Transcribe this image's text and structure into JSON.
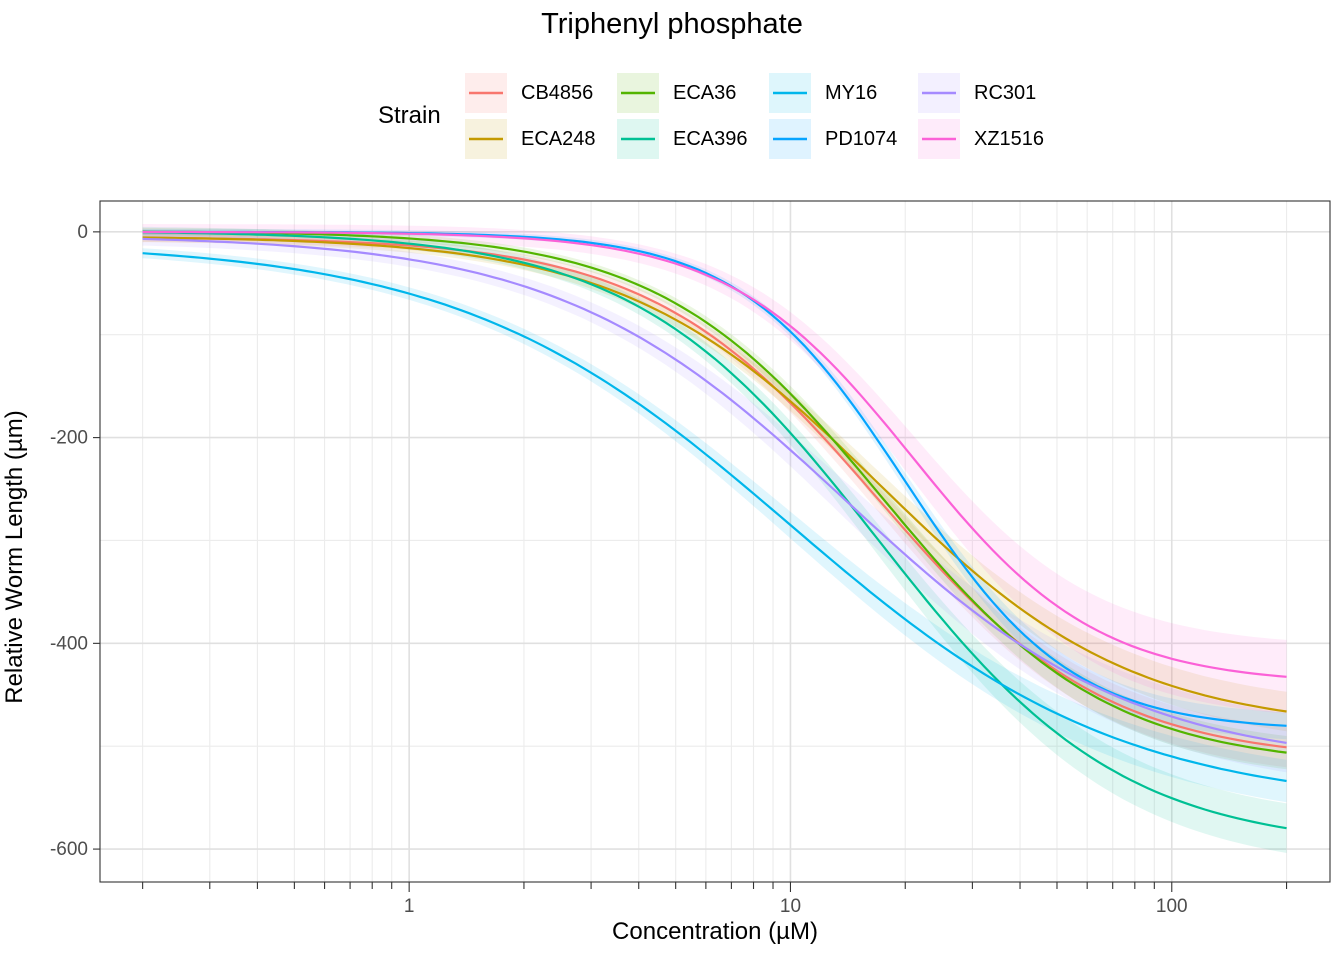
{
  "chart_data": {
    "type": "line",
    "title": "Triphenyl phosphate",
    "xlabel": "Concentration (µM)",
    "ylabel": "Relative Worm Length (µm)",
    "xscale": "log10",
    "xlim": [
      0.1546,
      260
    ],
    "ylim": [
      -632,
      30
    ],
    "x_ticks": [
      1,
      10,
      100
    ],
    "x_tick_labels": [
      "1",
      "10",
      "100"
    ],
    "y_ticks": [
      0,
      -200,
      -400,
      -600
    ],
    "y_tick_labels": [
      "0",
      "-200",
      "-400",
      "-600"
    ],
    "grid": true,
    "legend_title": "Strain",
    "legend_position": "top",
    "x_range": [
      0.2,
      200
    ],
    "series": [
      {
        "name": "CB4856",
        "color": "#F8766D",
        "top": -5,
        "bottom": -515,
        "ec50": 17,
        "hill": 1.45,
        "band": 12
      },
      {
        "name": "ECA248",
        "color": "#C49A00",
        "top": -4,
        "bottom": -485,
        "ec50": 17,
        "hill": 1.3,
        "band": 12
      },
      {
        "name": "ECA36",
        "color": "#53B400",
        "top": 1,
        "bottom": -520,
        "ec50": 17.5,
        "hill": 1.48,
        "band": 10
      },
      {
        "name": "ECA396",
        "color": "#00C094",
        "top": 1,
        "bottom": -600,
        "ec50": 17,
        "hill": 1.36,
        "band": 15
      },
      {
        "name": "MY16",
        "color": "#00B6EB",
        "top": -10,
        "bottom": -560,
        "ec50": 10,
        "hill": 1.0,
        "band": 13
      },
      {
        "name": "PD1074",
        "color": "#06A4FF",
        "top": 0,
        "bottom": -485,
        "ec50": 20,
        "hill": 2.0,
        "band": 8
      },
      {
        "name": "RC301",
        "color": "#A58AFF",
        "top": -3,
        "bottom": -520,
        "ec50": 14,
        "hill": 1.15,
        "band": 18
      },
      {
        "name": "XZ1516",
        "color": "#FB61D7",
        "top": 0,
        "bottom": -440,
        "ec50": 21,
        "hill": 1.8,
        "band": 22
      }
    ]
  }
}
